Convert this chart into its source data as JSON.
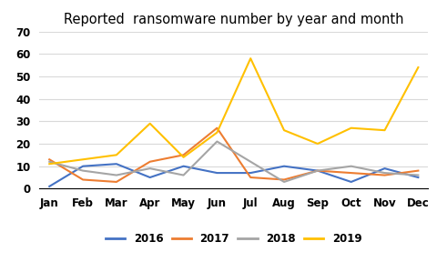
{
  "title": "Reported  ransomware number by year and month",
  "months": [
    "Jan",
    "Feb",
    "Mar",
    "Apr",
    "May",
    "Jun",
    "Jul",
    "Aug",
    "Sep",
    "Oct",
    "Nov",
    "Dec"
  ],
  "series": {
    "2016": [
      1,
      10,
      11,
      5,
      10,
      7,
      7,
      10,
      8,
      3,
      9,
      5
    ],
    "2017": [
      13,
      4,
      3,
      12,
      15,
      27,
      5,
      4,
      8,
      7,
      6,
      8
    ],
    "2018": [
      12,
      8,
      6,
      9,
      6,
      21,
      12,
      3,
      8,
      10,
      7,
      6
    ],
    "2019": [
      11,
      13,
      15,
      29,
      14,
      25,
      58,
      26,
      20,
      27,
      26,
      54
    ]
  },
  "colors": {
    "2016": "#4472C4",
    "2017": "#ED7D31",
    "2018": "#A5A5A5",
    "2019": "#FFC000"
  },
  "ylim": [
    0,
    70
  ],
  "yticks": [
    0,
    10,
    20,
    30,
    40,
    50,
    60,
    70
  ],
  "background_color": "#ffffff",
  "grid_color": "#d9d9d9"
}
